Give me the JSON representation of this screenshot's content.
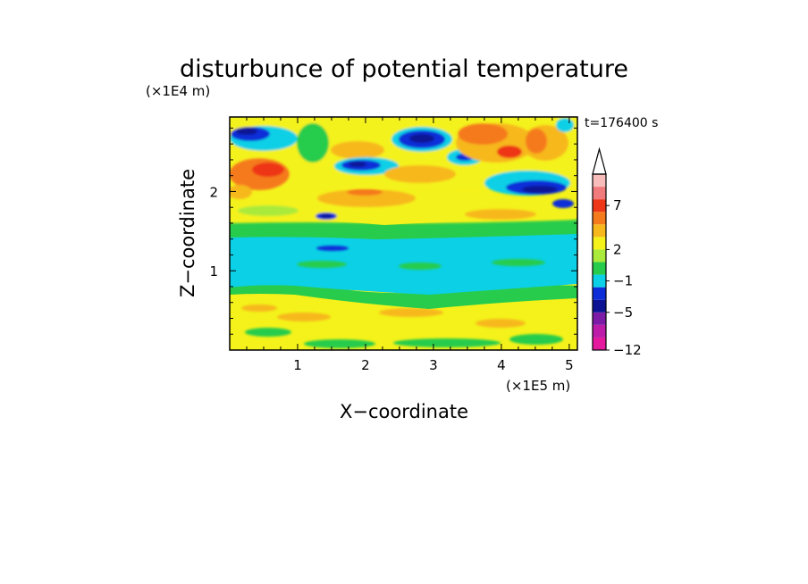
{
  "chart_data": {
    "type": "heatmap",
    "title": "disturbunce of potential temperature",
    "xlabel": "X−coordinate",
    "ylabel": "Z−coordinate",
    "x_scale_label": "(×1E5 m)",
    "y_scale_label": "(×1E4 m)",
    "time_label": "t=176400 s",
    "xlim": [
      0,
      5.12
    ],
    "ylim": [
      0,
      2.94
    ],
    "x_ticks": [
      1,
      2,
      3,
      4,
      5
    ],
    "y_ticks": [
      1,
      2
    ],
    "x_tick_labels": [
      "1",
      "2",
      "3",
      "4",
      "5"
    ],
    "y_tick_labels": [
      "1",
      "2"
    ],
    "colorbar": {
      "labels": [
        "7",
        "2",
        "−1",
        "−5",
        "−12"
      ],
      "label_levels": [
        7,
        2,
        -1,
        -5,
        -12
      ],
      "colors": [
        "#e4199e",
        "#bc1ca8",
        "#7c1ca6",
        "#0b1294",
        "#0c2dd8",
        "#0bd0e6",
        "#28cc4c",
        "#aaea3a",
        "#f4f21a",
        "#f7b81d",
        "#f57a1c",
        "#ee3618",
        "#f07a7c",
        "#f8bdbb"
      ],
      "extend": "max"
    },
    "bands": [
      {
        "z_bottom": 0.0,
        "z_top": 0.85,
        "color": "#f4f21a",
        "meaning": "yellow near-surface band (about 0 to 2)"
      },
      {
        "z_bottom": 0.78,
        "z_top": 0.9,
        "color": "#28cc4c",
        "meaning": "green layer (about -1 to 0)"
      },
      {
        "z_bottom": 0.9,
        "z_top": 1.4,
        "color": "#0bd0e6",
        "meaning": "cyan layer (about -2 to -1)"
      },
      {
        "z_bottom": 1.4,
        "z_top": 1.6,
        "color": "#28cc4c",
        "meaning": "green layer"
      },
      {
        "z_bottom": 1.6,
        "z_top": 2.0,
        "color": "#f4f21a",
        "meaning": "yellow/orange warm layer"
      },
      {
        "z_bottom": 2.0,
        "z_top": 2.94,
        "color": "#f7b81d",
        "meaning": "wave-like alternating anomalies aloft"
      }
    ],
    "features": [
      {
        "x": 4.05,
        "z": 2.5,
        "value": 7,
        "color": "#ee3618",
        "meaning": "warm maximum"
      },
      {
        "x": 4.4,
        "z": 2.1,
        "value": -5,
        "color": "#0b1294",
        "meaning": "cold minimum"
      },
      {
        "x": 2.85,
        "z": 2.7,
        "value": -5,
        "color": "#0b1294",
        "meaning": "cold minimum"
      },
      {
        "x": 1.95,
        "z": 2.35,
        "value": -5,
        "color": "#0b1294",
        "meaning": "cold minimum"
      },
      {
        "x": 0.45,
        "z": 2.7,
        "value": -5,
        "color": "#0b1294",
        "meaning": "cold minimum"
      },
      {
        "x": 1.45,
        "z": 1.3,
        "value": -5,
        "color": "#0b1294",
        "meaning": "cold minimum"
      }
    ]
  }
}
